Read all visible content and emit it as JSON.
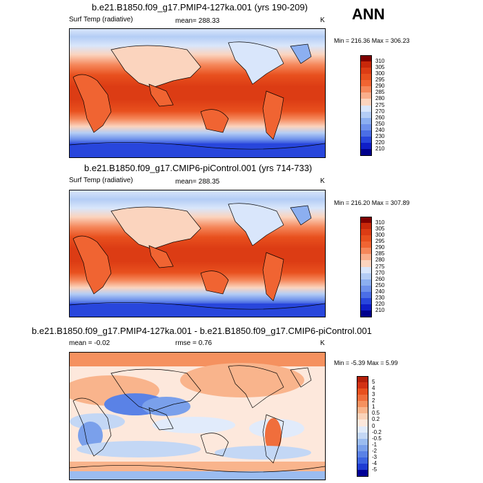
{
  "season": "ANN",
  "units": "K",
  "panels": [
    {
      "title": "b.e21.B1850.f09_g17.PMIP4-127ka.001 (yrs 190-209)",
      "variable": "Surf Temp (radiative)",
      "mean_text": "mean= 288.33",
      "minmax_text": "Min = 216.36 Max = 306.23",
      "mean": 288.33,
      "min": 216.36,
      "max": 306.23
    },
    {
      "title": "b.e21.B1850.f09_g17.CMIP6-piControl.001 (yrs 714-733)",
      "variable": "Surf Temp (radiative)",
      "mean_text": "mean= 288.35",
      "minmax_text": "Min = 216.20 Max = 307.89",
      "mean": 288.35,
      "min": 216.2,
      "max": 307.89
    },
    {
      "title": "b.e21.B1850.f09_g17.PMIP4-127ka.001 - b.e21.B1850.f09_g17.CMIP6-piControl.001",
      "mean_text": "mean =  -0.02",
      "rmse_text": "rmse =   0.76",
      "minmax_text": "Min =  -5.39 Max =   5.99",
      "mean": -0.02,
      "rmse": 0.76,
      "min": -5.39,
      "max": 5.99
    }
  ],
  "colorbars": {
    "absolute": {
      "levels": [
        "310",
        "305",
        "300",
        "295",
        "290",
        "285",
        "280",
        "275",
        "270",
        "260",
        "250",
        "240",
        "230",
        "220",
        "210"
      ],
      "colors": [
        "#7f0000",
        "#c8280a",
        "#dc3c14",
        "#e8501e",
        "#f06432",
        "#f5875a",
        "#f9ae8c",
        "#fbd4be",
        "#d9e6fb",
        "#b4cdf5",
        "#8caff0",
        "#6e91eb",
        "#4b6ee6",
        "#2846dc",
        "#0f1ec8",
        "#00008c"
      ]
    },
    "difference": {
      "levels": [
        "5",
        "4",
        "3",
        "2",
        "1",
        "0.5",
        "0.2",
        "0",
        "-0.2",
        "-0.5",
        "-1",
        "-2",
        "-3",
        "-4",
        "-5"
      ],
      "colors": [
        "#b4200a",
        "#d23214",
        "#e8501e",
        "#f06e3c",
        "#f5915f",
        "#f9b48c",
        "#fbd2b9",
        "#fde8dc",
        "#e1ebfb",
        "#c3d7f5",
        "#9bbcf0",
        "#7aa0eb",
        "#5a82e6",
        "#3c64e1",
        "#1e3cd2",
        "#000096"
      ]
    }
  },
  "chart_data": [
    {
      "type": "heatmap",
      "title": "b.e21.B1850.f09_g17.PMIP4-127ka.001 (yrs 190-209)",
      "subtitle": "Surf Temp (radiative)",
      "units": "K",
      "annotations": [
        "ANN",
        "mean= 288.33",
        "Min = 216.36 Max = 306.23"
      ],
      "levels": [
        210,
        220,
        230,
        240,
        250,
        260,
        270,
        275,
        280,
        285,
        290,
        295,
        300,
        305,
        310
      ]
    },
    {
      "type": "heatmap",
      "title": "b.e21.B1850.f09_g17.CMIP6-piControl.001 (yrs 714-733)",
      "subtitle": "Surf Temp (radiative)",
      "units": "K",
      "annotations": [
        "mean= 288.35",
        "Min = 216.20 Max = 307.89"
      ],
      "levels": [
        210,
        220,
        230,
        240,
        250,
        260,
        270,
        275,
        280,
        285,
        290,
        295,
        300,
        305,
        310
      ]
    },
    {
      "type": "heatmap",
      "title": "b.e21.B1850.f09_g17.PMIP4-127ka.001 - b.e21.B1850.f09_g17.CMIP6-piControl.001",
      "units": "K",
      "annotations": [
        "mean =  -0.02",
        "rmse =   0.76",
        "Min =  -5.39 Max =   5.99"
      ],
      "levels": [
        -5,
        -4,
        -3,
        -2,
        -1,
        -0.5,
        -0.2,
        0,
        0.2,
        0.5,
        1,
        2,
        3,
        4,
        5
      ]
    }
  ]
}
